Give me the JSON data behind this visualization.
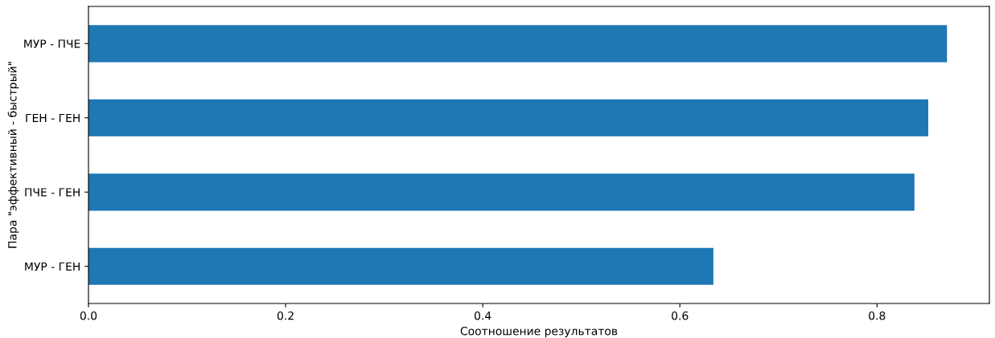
{
  "chart_data": {
    "type": "bar",
    "orientation": "horizontal",
    "xlabel": "Соотношение результатов",
    "ylabel": "Пара \"эффективный - быстрый\"",
    "categories": [
      "МУР - ПЧЕ",
      "ГЕН - ГЕН",
      "ПЧЕ - ГЕН",
      "МУР - ГЕН"
    ],
    "values": [
      0.871,
      0.852,
      0.838,
      0.634
    ],
    "color": "#1f77b4",
    "xlim": [
      0,
      0.914
    ],
    "xticks": [
      {
        "value": 0,
        "label": "0.0"
      },
      {
        "value": 0.2,
        "label": "0.2"
      },
      {
        "value": 0.4,
        "label": "0.4"
      },
      {
        "value": 0.6,
        "label": "0.6"
      },
      {
        "value": 0.8,
        "label": "0.8"
      }
    ],
    "grid": false,
    "legend": false
  }
}
